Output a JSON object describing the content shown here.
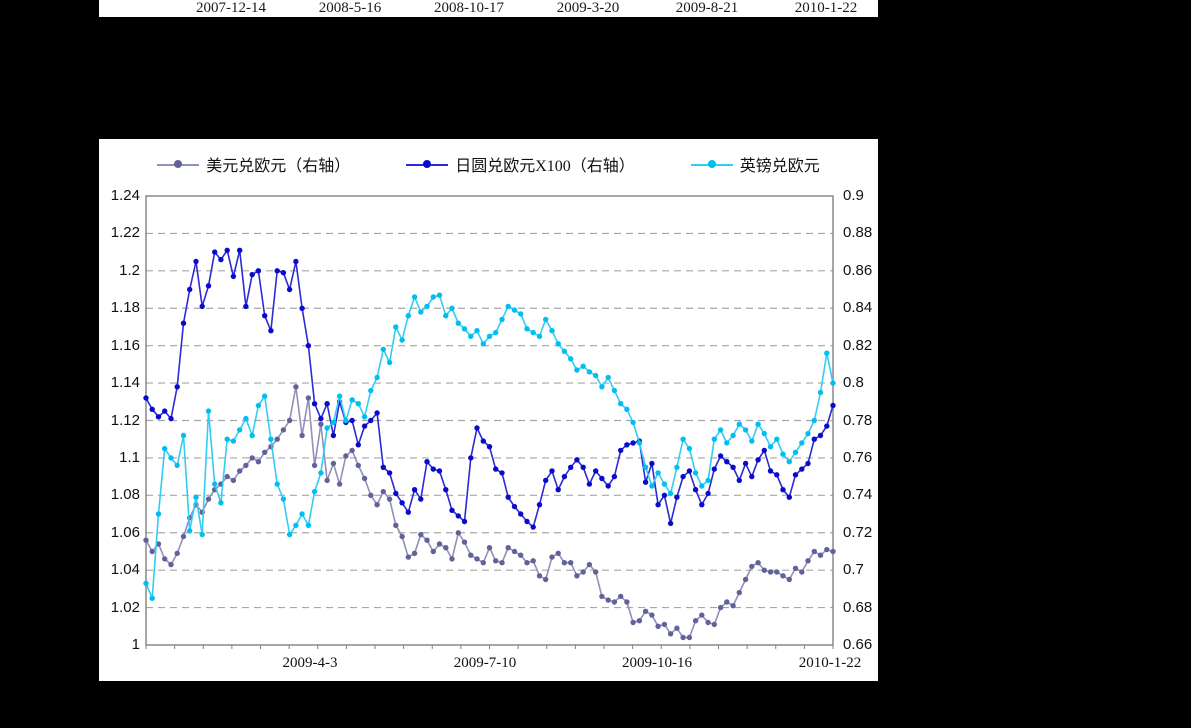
{
  "top_axis": {
    "labels": [
      "2007-12-14",
      "2008-5-16",
      "2008-10-17",
      "2009-3-20",
      "2009-8-21",
      "2010-1-22"
    ]
  },
  "legend": {
    "items": [
      {
        "label": "美元兑欧元（右轴）",
        "marker_color": "#62629a",
        "line_color": "#9090b8"
      },
      {
        "label": "日圆兑欧元X100（右轴）",
        "marker_color": "#0a0acd",
        "line_color": "#2b2bd5"
      },
      {
        "label": "英镑兑欧元",
        "marker_color": "#00bff0",
        "line_color": "#33ccf5"
      }
    ]
  },
  "colors": {
    "page_background": "#000000",
    "panel_background": "#ffffff",
    "gridline": "#a6a6a6",
    "plot_border": "#808080",
    "axis_text": "#111111"
  },
  "chart_data": {
    "type": "line",
    "title": "",
    "left_axis": {
      "min": 1.0,
      "max": 1.24,
      "tick_labels": [
        "1.24",
        "1.22",
        "1.2",
        "1.18",
        "1.16",
        "1.14",
        "1.12",
        "1.1",
        "1.08",
        "1.06",
        "1.04",
        "1.02",
        "1"
      ]
    },
    "right_axis": {
      "min": 0.66,
      "max": 0.9,
      "tick_labels": [
        "0.9",
        "0.88",
        "0.86",
        "0.84",
        "0.82",
        "0.8",
        "0.78",
        "0.76",
        "0.74",
        "0.72",
        "0.7",
        "0.68",
        "0.66"
      ]
    },
    "x_axis": {
      "labels": [
        "2009-4-3",
        "2009-7-10",
        "2009-10-16",
        "2010-1-22"
      ],
      "minor_tick_count": 24
    },
    "grid": "dashed-horizontal",
    "legend_position": "top",
    "series": [
      {
        "name": "美元兑欧元（右轴）",
        "axis": "right",
        "marker_color": "#62629a",
        "line_color": "#9090b8",
        "values": [
          0.716,
          0.71,
          0.714,
          0.706,
          0.703,
          0.709,
          0.718,
          0.728,
          0.735,
          0.731,
          0.738,
          0.743,
          0.746,
          0.75,
          0.748,
          0.753,
          0.756,
          0.76,
          0.758,
          0.763,
          0.766,
          0.77,
          0.775,
          0.78,
          0.798,
          0.772,
          0.792,
          0.756,
          0.778,
          0.748,
          0.757,
          0.746,
          0.761,
          0.764,
          0.756,
          0.749,
          0.74,
          0.735,
          0.742,
          0.738,
          0.724,
          0.718,
          0.707,
          0.709,
          0.719,
          0.716,
          0.71,
          0.714,
          0.712,
          0.706,
          0.72,
          0.715,
          0.708,
          0.706,
          0.704,
          0.712,
          0.705,
          0.704,
          0.712,
          0.71,
          0.708,
          0.704,
          0.705,
          0.697,
          0.695,
          0.707,
          0.709,
          0.704,
          0.704,
          0.697,
          0.699,
          0.703,
          0.699,
          0.686,
          0.684,
          0.683,
          0.686,
          0.683,
          0.672,
          0.673,
          0.678,
          0.676,
          0.67,
          0.671,
          0.666,
          0.669,
          0.664,
          0.664,
          0.673,
          0.676,
          0.672,
          0.671,
          0.68,
          0.683,
          0.681,
          0.688,
          0.695,
          0.702,
          0.704,
          0.7,
          0.699,
          0.699,
          0.697,
          0.695,
          0.701,
          0.699,
          0.705,
          0.71,
          0.708,
          0.711,
          0.71
        ]
      },
      {
        "name": "日圆兑欧元X100（右轴）",
        "axis": "right",
        "marker_color": "#0a0acd",
        "line_color": "#2b2bd5",
        "values": [
          0.792,
          0.786,
          0.782,
          0.785,
          0.781,
          0.798,
          0.832,
          0.85,
          0.865,
          0.841,
          0.852,
          0.87,
          0.866,
          0.871,
          0.857,
          0.871,
          0.841,
          0.858,
          0.86,
          0.836,
          0.828,
          0.86,
          0.859,
          0.85,
          0.865,
          0.84,
          0.82,
          0.789,
          0.781,
          0.789,
          0.772,
          0.79,
          0.779,
          0.78,
          0.767,
          0.777,
          0.78,
          0.784,
          0.755,
          0.752,
          0.741,
          0.736,
          0.731,
          0.743,
          0.738,
          0.758,
          0.754,
          0.753,
          0.743,
          0.732,
          0.729,
          0.726,
          0.76,
          0.776,
          0.769,
          0.766,
          0.754,
          0.752,
          0.739,
          0.734,
          0.73,
          0.726,
          0.723,
          0.735,
          0.748,
          0.753,
          0.743,
          0.75,
          0.755,
          0.759,
          0.755,
          0.746,
          0.753,
          0.749,
          0.745,
          0.75,
          0.764,
          0.767,
          0.768,
          0.769,
          0.747,
          0.757,
          0.735,
          0.74,
          0.725,
          0.739,
          0.75,
          0.753,
          0.743,
          0.735,
          0.741,
          0.754,
          0.761,
          0.758,
          0.755,
          0.748,
          0.757,
          0.75,
          0.759,
          0.764,
          0.753,
          0.751,
          0.743,
          0.739,
          0.751,
          0.754,
          0.757,
          0.77,
          0.772,
          0.777,
          0.788
        ]
      },
      {
        "name": "英镑兑欧元",
        "axis": "left",
        "marker_color": "#00bff0",
        "line_color": "#33ccf5",
        "values": [
          1.033,
          1.025,
          1.07,
          1.105,
          1.1,
          1.096,
          1.112,
          1.061,
          1.079,
          1.059,
          1.125,
          1.086,
          1.076,
          1.11,
          1.109,
          1.115,
          1.121,
          1.112,
          1.128,
          1.133,
          1.11,
          1.086,
          1.078,
          1.059,
          1.064,
          1.07,
          1.064,
          1.082,
          1.092,
          1.116,
          1.119,
          1.133,
          1.12,
          1.131,
          1.129,
          1.122,
          1.136,
          1.143,
          1.158,
          1.151,
          1.17,
          1.163,
          1.176,
          1.186,
          1.178,
          1.181,
          1.186,
          1.187,
          1.176,
          1.18,
          1.172,
          1.169,
          1.165,
          1.168,
          1.161,
          1.165,
          1.167,
          1.174,
          1.181,
          1.179,
          1.177,
          1.169,
          1.167,
          1.165,
          1.174,
          1.168,
          1.161,
          1.157,
          1.153,
          1.147,
          1.149,
          1.146,
          1.144,
          1.138,
          1.143,
          1.136,
          1.129,
          1.126,
          1.119,
          1.108,
          1.095,
          1.085,
          1.092,
          1.086,
          1.081,
          1.095,
          1.11,
          1.105,
          1.092,
          1.085,
          1.088,
          1.11,
          1.115,
          1.108,
          1.112,
          1.118,
          1.115,
          1.109,
          1.118,
          1.113,
          1.106,
          1.11,
          1.102,
          1.098,
          1.103,
          1.108,
          1.113,
          1.12,
          1.135,
          1.156,
          1.14
        ]
      }
    ]
  }
}
